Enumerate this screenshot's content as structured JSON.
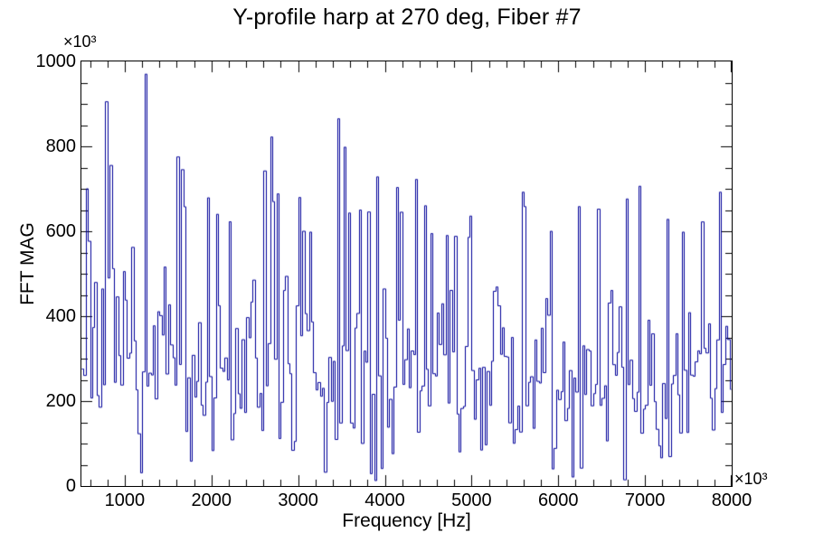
{
  "page": {
    "background": "#ffffff"
  },
  "chart_data": {
    "type": "line",
    "title": "Y-profile harp at 270 deg, Fiber #7",
    "xlabel": "Frequency [Hz]",
    "ylabel": "FFT MAG",
    "x_axis_multiplier": "×10³",
    "y_axis_multiplier": "×10³",
    "xlim": [
      500,
      8000
    ],
    "ylim": [
      0,
      1000
    ],
    "x_tick_values": [
      1000,
      2000,
      3000,
      4000,
      5000,
      6000,
      7000,
      8000
    ],
    "x_tick_labels": [
      "1000",
      "2000",
      "3000",
      "4000",
      "5000",
      "6000",
      "7000",
      "8000"
    ],
    "x_minor_step": 200,
    "y_tick_values": [
      0,
      200,
      400,
      600,
      800,
      1000
    ],
    "y_tick_labels": [
      "0",
      "200",
      "400",
      "600",
      "800",
      "1000"
    ],
    "y_minor_step": 50,
    "grid": false,
    "legend": null,
    "line_color": "#000099",
    "axis_color": "#000000",
    "background_color": "#ffffff",
    "noise_model": {
      "comment": "dense noisy FFT magnitude spectrum; values in units of 1e3",
      "seed": 7,
      "n_points": 300,
      "mean": 268,
      "sd": 92,
      "dip_prob": 0.09,
      "dip_min": 8,
      "dip_max": 140,
      "spike_prob": 0.07,
      "spike_min": 430,
      "spike_max": 700,
      "left_boost_until": 900,
      "left_boost": 1.12,
      "clip_min": 6,
      "clip_max": 985
    },
    "peaks": [
      [
        560,
        700
      ],
      [
        780,
        905
      ],
      [
        1240,
        970
      ],
      [
        1600,
        775
      ],
      [
        1660,
        745
      ],
      [
        2060,
        640
      ],
      [
        2600,
        742
      ],
      [
        2680,
        822
      ],
      [
        2760,
        688
      ],
      [
        3060,
        600
      ],
      [
        3130,
        598
      ],
      [
        3460,
        865
      ],
      [
        3530,
        798
      ],
      [
        3700,
        650
      ],
      [
        3900,
        728
      ],
      [
        4130,
        703
      ],
      [
        4350,
        722
      ],
      [
        4470,
        660
      ],
      [
        4700,
        590
      ],
      [
        4820,
        588
      ],
      [
        5580,
        692
      ],
      [
        5620,
        658
      ],
      [
        5900,
        600
      ],
      [
        6230,
        658
      ],
      [
        6450,
        652
      ],
      [
        6780,
        676
      ],
      [
        6940,
        706
      ],
      [
        7260,
        628
      ],
      [
        7430,
        598
      ],
      [
        7650,
        622
      ],
      [
        7870,
        692
      ]
    ]
  }
}
